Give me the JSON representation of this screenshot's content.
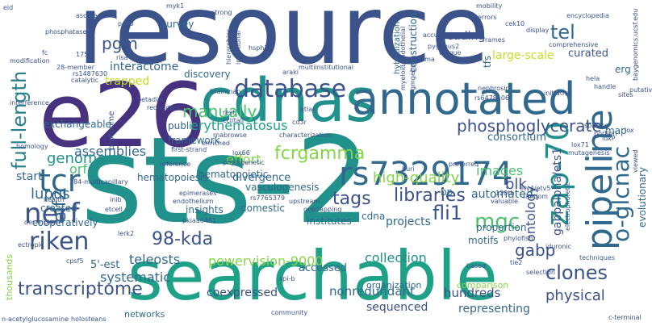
{
  "palette": {
    "purple": "#440154",
    "indigo": "#46327e",
    "blue": "#3b528b",
    "steel": "#31688e",
    "teal": "#277f8e",
    "cyan": "#21918c",
    "green": "#1fa187",
    "lime": "#4ac16d",
    "lightgreen": "#86d549",
    "yellow": "#c2df23"
  },
  "words": [
    {
      "text": "resource",
      "color": "#3b528b",
      "weight": 1.0
    },
    {
      "text": "sts-2",
      "color": "#21918c",
      "weight": 0.98
    },
    {
      "text": "e26",
      "color": "#46327e",
      "weight": 0.9
    },
    {
      "text": "searchable",
      "color": "#1fa187",
      "weight": 0.85
    },
    {
      "text": "cdnas",
      "color": "#21918c",
      "weight": 0.8
    },
    {
      "text": "annotated",
      "color": "#31688e",
      "weight": 0.7
    },
    {
      "text": "database",
      "color": "#3b528b",
      "weight": 0.5
    },
    {
      "text": "rs7329174",
      "color": "#31688e",
      "weight": 0.5
    },
    {
      "text": "pipeline",
      "color": "#31688e",
      "weight": 0.55
    },
    {
      "text": "zap-70",
      "color": "#21918c",
      "weight": 0.5
    },
    {
      "text": "tcr",
      "color": "#31688e",
      "weight": 0.5
    },
    {
      "text": "nerf",
      "color": "#3b528b",
      "weight": 0.45
    },
    {
      "text": "riken",
      "color": "#3b528b",
      "weight": 0.45
    },
    {
      "text": "full-length",
      "color": "#277f8e",
      "weight": 0.4
    },
    {
      "text": "pgm",
      "color": "#3b528b",
      "weight": 0.3
    },
    {
      "text": "tel",
      "color": "#31688e",
      "weight": 0.3
    },
    {
      "text": "manually",
      "color": "#4ac16d",
      "weight": 0.3
    },
    {
      "text": "phosphoglycerate",
      "color": "#3b528b",
      "weight": 0.3
    },
    {
      "text": "erythematosus",
      "color": "#1fa187",
      "weight": 0.25
    },
    {
      "text": "interactome",
      "color": "#31688e",
      "weight": 0.25
    },
    {
      "text": "fcrgamma",
      "color": "#86d549",
      "weight": 0.25
    },
    {
      "text": "genome",
      "color": "#21918c",
      "weight": 0.25
    },
    {
      "text": "orf",
      "color": "#4ac16d",
      "weight": 0.25
    },
    {
      "text": "assemblies",
      "color": "#31688e",
      "weight": 0.25
    },
    {
      "text": "lupus",
      "color": "#31688e",
      "weight": 0.25
    },
    {
      "text": "elf2",
      "color": "#31688e",
      "weight": 0.25
    },
    {
      "text": "tags",
      "color": "#3b528b",
      "weight": 0.25
    },
    {
      "text": "libraries",
      "color": "#3b528b",
      "weight": 0.25
    },
    {
      "text": "fli1",
      "color": "#3b528b",
      "weight": 0.25
    },
    {
      "text": "mgc",
      "color": "#4ac16d",
      "weight": 0.25
    },
    {
      "text": "o-glcnac",
      "color": "#31688e",
      "weight": 0.25
    },
    {
      "text": "98-kda",
      "color": "#3b528b",
      "weight": 0.25
    },
    {
      "text": "transcriptome",
      "color": "#3b528b",
      "weight": 0.25
    },
    {
      "text": "clones",
      "color": "#3b528b",
      "weight": 0.25
    },
    {
      "text": "gabp",
      "color": "#3b528b",
      "weight": 0.2
    },
    {
      "text": "high-quality",
      "color": "#86d549",
      "weight": 0.2
    },
    {
      "text": "images",
      "color": "#4ac16d",
      "weight": 0.2
    },
    {
      "text": "blk",
      "color": "#3b528b",
      "weight": 0.2
    },
    {
      "text": "ontology",
      "color": "#3b528b",
      "weight": 0.2
    },
    {
      "text": "gabpalpha/ets1",
      "color": "#3b528b",
      "weight": 0.2
    },
    {
      "text": "powervision-9000",
      "color": "#86d549",
      "weight": 0.2
    },
    {
      "text": "collection",
      "color": "#21918c",
      "weight": 0.2
    },
    {
      "text": "teleosts",
      "color": "#31688e",
      "weight": 0.2
    },
    {
      "text": "systematic",
      "color": "#31688e",
      "weight": 0.2
    },
    {
      "text": "physical",
      "color": "#3b528b",
      "weight": 0.2
    },
    {
      "text": "coexpressed",
      "color": "#3b528b",
      "weight": 0.18
    },
    {
      "text": "nonredundant",
      "color": "#31688e",
      "weight": 0.18
    },
    {
      "text": "hundreds",
      "color": "#3b528b",
      "weight": 0.18
    },
    {
      "text": "representing",
      "color": "#31688e",
      "weight": 0.18
    },
    {
      "text": "sequenced",
      "color": "#3b528b",
      "weight": 0.18
    },
    {
      "text": "projects",
      "color": "#31688e",
      "weight": 0.18
    },
    {
      "text": "automated",
      "color": "#31688e",
      "weight": 0.18
    },
    {
      "text": "divergence",
      "color": "#31688e",
      "weight": 0.18
    },
    {
      "text": "effort",
      "color": "#86d549",
      "weight": 0.18
    },
    {
      "text": "accessed",
      "color": "#31688e",
      "weight": 0.18
    },
    {
      "text": "reading",
      "color": "#3b528b",
      "weight": 0.18
    },
    {
      "text": "curated",
      "color": "#3b528b",
      "weight": 0.15
    },
    {
      "text": "consortium",
      "color": "#31688e",
      "weight": 0.15
    },
    {
      "text": "large-scale",
      "color": "#c2df23",
      "weight": 0.15
    },
    {
      "text": "trapped",
      "color": "#c2df23",
      "weight": 0.15
    },
    {
      "text": "exchangeable",
      "color": "#31688e",
      "weight": 0.12
    },
    {
      "text": "survey",
      "color": "#31688e",
      "weight": 0.12
    },
    {
      "text": "discovery",
      "color": "#31688e",
      "weight": 0.12
    },
    {
      "text": "construction",
      "color": "#31688e",
      "weight": 0.12
    },
    {
      "text": "tfs",
      "color": "#31688e",
      "weight": 0.12
    },
    {
      "text": "start",
      "color": "#31688e",
      "weight": 0.15
    },
    {
      "text": "created",
      "color": "#31688e",
      "weight": 0.12
    },
    {
      "text": "public",
      "color": "#31688e",
      "weight": 0.12
    },
    {
      "text": "framework",
      "color": "#31688e",
      "weight": 0.12
    },
    {
      "text": "vasculogenesis",
      "color": "#31688e",
      "weight": 0.12
    },
    {
      "text": "hematopoiesis",
      "color": "#31688e",
      "weight": 0.12
    },
    {
      "text": "hematopoietic",
      "color": "#31688e",
      "weight": 0.12
    },
    {
      "text": "cdna",
      "color": "#31688e",
      "weight": 0.12
    },
    {
      "text": "bp",
      "color": "#31688e",
      "weight": 0.12
    },
    {
      "text": "institutes",
      "color": "#31688e",
      "weight": 0.12
    },
    {
      "text": "domestic",
      "color": "#31688e",
      "weight": 0.12
    },
    {
      "text": "insights",
      "color": "#31688e",
      "weight": 0.12
    },
    {
      "text": "cooperatively",
      "color": "#31688e",
      "weight": 0.12
    },
    {
      "text": "motifs",
      "color": "#31688e",
      "weight": 0.12
    },
    {
      "text": "proportion",
      "color": "#31688e",
      "weight": 0.12
    },
    {
      "text": "evolutionary",
      "color": "#31688e",
      "weight": 0.12
    },
    {
      "text": "map",
      "color": "#31688e",
      "weight": 0.12
    },
    {
      "text": "erg",
      "color": "#31688e",
      "weight": 0.12
    },
    {
      "text": "5'-est",
      "color": "#31688e",
      "weight": 0.12
    },
    {
      "text": "organization",
      "color": "#31688e",
      "weight": 0.1
    },
    {
      "text": "comparison",
      "color": "#86d549",
      "weight": 0.1
    },
    {
      "text": "thousands",
      "color": "#86d549",
      "weight": 0.1
    },
    {
      "text": "networks",
      "color": "#31688e",
      "weight": 0.1
    },
    {
      "text": "hybridization",
      "color": "#31688e",
      "weight": 0.08
    },
    {
      "text": "proteome",
      "color": "#3b528b",
      "weight": 0.08
    },
    {
      "text": "eid",
      "color": "#3b528b",
      "weight": 0.06
    },
    {
      "text": "ascore",
      "color": "#3b528b",
      "weight": 0.06
    },
    {
      "text": "pc60",
      "color": "#3b528b",
      "weight": 0.06
    },
    {
      "text": "myk1",
      "color": "#3b528b",
      "weight": 0.06
    },
    {
      "text": "strong",
      "color": "#3b528b",
      "weight": 0.06
    },
    {
      "text": "errors",
      "color": "#3b528b",
      "weight": 0.06
    },
    {
      "text": "mobility",
      "color": "#3b528b",
      "weight": 0.06
    },
    {
      "text": "encyclopedia",
      "color": "#3b528b",
      "weight": 0.06
    },
    {
      "text": "baygenomics.ucsf.edu",
      "color": "#3b528b",
      "weight": 0.06
    },
    {
      "text": "phosphatase",
      "color": "#3b528b",
      "weight": 0.06
    },
    {
      "text": "accuracy",
      "color": "#3b528b",
      "weight": 0.06
    },
    {
      "text": "display",
      "color": "#3b528b",
      "weight": 0.06
    },
    {
      "text": "cek10",
      "color": "#3b528b",
      "weight": 0.06
    },
    {
      "text": "comprehensive",
      "color": "#3b528b",
      "weight": 0.06
    },
    {
      "text": "pygopus2",
      "color": "#3b528b",
      "weight": 0.06
    },
    {
      "text": "fc",
      "color": "#3b528b",
      "weight": 0.06
    },
    {
      "text": "175th",
      "color": "#3b528b",
      "weight": 0.06
    },
    {
      "text": "risa",
      "color": "#3b528b",
      "weight": 0.06
    },
    {
      "text": "global",
      "color": "#3b528b",
      "weight": 0.06
    },
    {
      "text": "hsph2",
      "color": "#3b528b",
      "weight": 0.06
    },
    {
      "text": "frames",
      "color": "#3b528b",
      "weight": 0.06
    },
    {
      "text": "modification",
      "color": "#3b528b",
      "weight": 0.06
    },
    {
      "text": "28-member",
      "color": "#3b528b",
      "weight": 0.06
    },
    {
      "text": "rs1487630",
      "color": "#3b528b",
      "weight": 0.06
    },
    {
      "text": "catalytic",
      "color": "#3b528b",
      "weight": 0.06
    },
    {
      "text": "araki",
      "color": "#3b528b",
      "weight": 0.06
    },
    {
      "text": "multiinstitutional",
      "color": "#3b528b",
      "weight": 0.06
    },
    {
      "text": "nephrosin",
      "color": "#3b528b",
      "weight": 0.06
    },
    {
      "text": "hela",
      "color": "#3b528b",
      "weight": 0.06
    },
    {
      "text": "putative",
      "color": "#3b528b",
      "weight": 0.06
    },
    {
      "text": "rs6478106",
      "color": "#3b528b",
      "weight": 0.06
    },
    {
      "text": "initiative",
      "color": "#3b528b",
      "weight": 0.06
    },
    {
      "text": "handle",
      "color": "#3b528b",
      "weight": 0.06
    },
    {
      "text": "sites",
      "color": "#3b528b",
      "weight": 0.06
    },
    {
      "text": "betadiol",
      "color": "#3b528b",
      "weight": 0.06
    },
    {
      "text": "brainmap",
      "color": "#3b528b",
      "weight": 0.06
    },
    {
      "text": "interference",
      "color": "#3b528b",
      "weight": 0.06
    },
    {
      "text": "redundant",
      "color": "#3b528b",
      "weight": 0.06
    },
    {
      "text": "atlas",
      "color": "#3b528b",
      "weight": 0.06
    },
    {
      "text": "rest",
      "color": "#3b528b",
      "weight": 0.06
    },
    {
      "text": "ccl/tall",
      "color": "#3b528b",
      "weight": 0.06
    },
    {
      "text": "rnabrowse",
      "color": "#3b528b",
      "weight": 0.06
    },
    {
      "text": "first-strand",
      "color": "#3b528b",
      "weight": 0.06
    },
    {
      "text": "enriched",
      "color": "#3b528b",
      "weight": 0.06
    },
    {
      "text": "cd3r",
      "color": "#3b528b",
      "weight": 0.06
    },
    {
      "text": "characterization",
      "color": "#3b528b",
      "weight": 0.06
    },
    {
      "text": "splicing",
      "color": "#3b528b",
      "weight": 0.06
    },
    {
      "text": "portion",
      "color": "#3b528b",
      "weight": 0.06
    },
    {
      "text": "lox",
      "color": "#3b528b",
      "weight": 0.06
    },
    {
      "text": "homology",
      "color": "#3b528b",
      "weight": 0.06
    },
    {
      "text": "loxP",
      "color": "#3b528b",
      "weight": 0.06
    },
    {
      "text": "lox71",
      "color": "#3b528b",
      "weight": 0.06
    },
    {
      "text": "mutagenesis",
      "color": "#3b528b",
      "weight": 0.06
    },
    {
      "text": "lox66",
      "color": "#3b528b",
      "weight": 0.06
    },
    {
      "text": "reference",
      "color": "#3b528b",
      "weight": 0.06
    },
    {
      "text": "phylogenetic",
      "color": "#3b528b",
      "weight": 0.06
    },
    {
      "text": "preferred",
      "color": "#3b528b",
      "weight": 0.06
    },
    {
      "text": "384-multicapillary",
      "color": "#3b528b",
      "weight": 0.06
    },
    {
      "text": "epimerases",
      "color": "#3b528b",
      "weight": 0.06
    },
    {
      "text": "rs7765379",
      "color": "#3b528b",
      "weight": 0.06
    },
    {
      "text": "huri",
      "color": "#3b528b",
      "weight": 0.06
    },
    {
      "text": "health",
      "color": "#3b528b",
      "weight": 0.06
    },
    {
      "text": "inib",
      "color": "#3b528b",
      "weight": 0.06
    },
    {
      "text": "endothelium",
      "color": "#3b528b",
      "weight": 0.06
    },
    {
      "text": "upstream",
      "color": "#3b528b",
      "weight": 0.06
    },
    {
      "text": "120th",
      "color": "#3b528b",
      "weight": 0.06
    },
    {
      "text": "valuable",
      "color": "#3b528b",
      "weight": 0.06
    },
    {
      "text": "etv4/etv5",
      "color": "#3b528b",
      "weight": 0.06
    },
    {
      "text": "random",
      "color": "#3b528b",
      "weight": 0.06
    },
    {
      "text": "etcell",
      "color": "#3b528b",
      "weight": 0.06
    },
    {
      "text": "overlapping",
      "color": "#3b528b",
      "weight": 0.06
    },
    {
      "text": "description",
      "color": "#3b528b",
      "weight": 0.06
    },
    {
      "text": "pkiaa0461",
      "color": "#3b528b",
      "weight": 0.06
    },
    {
      "text": "lerk2",
      "color": "#3b528b",
      "weight": 0.06
    },
    {
      "text": "phylofish",
      "color": "#3b528b",
      "weight": 0.06
    },
    {
      "text": "ectropic",
      "color": "#3b528b",
      "weight": 0.06
    },
    {
      "text": "cpsf5",
      "color": "#3b528b",
      "weight": 0.06
    },
    {
      "text": "spi-b",
      "color": "#3b528b",
      "weight": 0.06
    },
    {
      "text": "based",
      "color": "#3b528b",
      "weight": 0.06
    },
    {
      "text": "iduronic",
      "color": "#3b528b",
      "weight": 0.06
    },
    {
      "text": "techniques",
      "color": "#3b528b",
      "weight": 0.06
    },
    {
      "text": "selection",
      "color": "#3b528b",
      "weight": 0.06
    },
    {
      "text": "tie2",
      "color": "#3b528b",
      "weight": 0.06
    },
    {
      "text": "n-acetylglucosamine",
      "color": "#3b528b",
      "weight": 0.06
    },
    {
      "text": "holosteans",
      "color": "#3b528b",
      "weight": 0.06
    },
    {
      "text": "community",
      "color": "#3b528b",
      "weight": 0.06
    },
    {
      "text": "c-terminal",
      "color": "#3b528b",
      "weight": 0.06
    },
    {
      "text": "viewed",
      "color": "#3b528b",
      "weight": 0.06
    },
    {
      "text": "hierarchies",
      "color": "#3b528b",
      "weight": 0.06
    },
    {
      "text": "insertional",
      "color": "#3b528b",
      "weight": 0.06
    },
    {
      "text": "myeloid/endothelial",
      "color": "#3b528b",
      "weight": 0.06
    },
    {
      "text": "gmgebp",
      "color": "#3b528b",
      "weight": 0.06
    },
    {
      "text": "virma",
      "color": "#3b528b",
      "weight": 0.06
    },
    {
      "text": "unique",
      "color": "#3b528b",
      "weight": 0.06
    },
    {
      "text": "electrophoretic",
      "color": "#3b528b",
      "weight": 0.06
    }
  ]
}
